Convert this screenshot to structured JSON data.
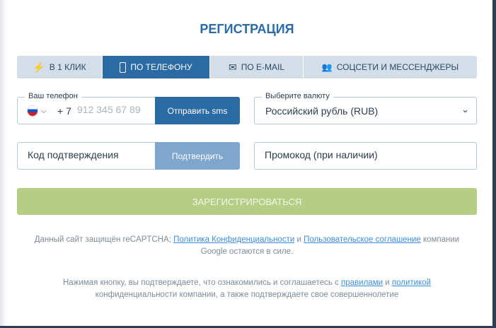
{
  "title": "РЕГИСТРАЦИЯ",
  "tabs": [
    {
      "label": "В 1 КЛИК",
      "icon": "lightning-icon"
    },
    {
      "label": "ПО ТЕЛЕФОНУ",
      "icon": "phone-icon",
      "active": true
    },
    {
      "label": "ПО E-MAIL",
      "icon": "envelope-icon"
    },
    {
      "label": "СОЦСЕТИ И МЕССЕНДЖЕРЫ",
      "icon": "users-icon"
    }
  ],
  "phone": {
    "legend": "Ваш телефон",
    "prefix": "+ 7",
    "placeholder": "912 345 67 89",
    "send_label": "Отправить sms",
    "country": "RU"
  },
  "currency": {
    "legend": "Выберите валюту",
    "value": "Российский рубль (RUB)"
  },
  "code": {
    "placeholder": "Код подтверждения",
    "confirm_label": "Подтвердить"
  },
  "promo": {
    "placeholder": "Промокод (при наличии)"
  },
  "register_label": "ЗАРЕГИСТРИРОВАТЬСЯ",
  "recaptcha": {
    "t1": "Данный сайт защищён reCAPTCHA; ",
    "link1": "Политика Конфиденциальности",
    "t2": " и ",
    "link2": "Пользовательское соглашение",
    "t3": " компании Google остаются в силе."
  },
  "consent": {
    "t1": "Нажимая кнопку, вы подтверждаете, что ознакомились и соглашаетесь с ",
    "link1": "правилами",
    "t2": " и ",
    "link2": "политикой",
    "t3": " конфиденциальности компании, а также подтверждаете свое совершеннолетие"
  },
  "colors": {
    "primary": "#2a6aa5",
    "register": "#b5cd84",
    "confirm": "#7fa6cc",
    "link": "#3d8ee0"
  }
}
